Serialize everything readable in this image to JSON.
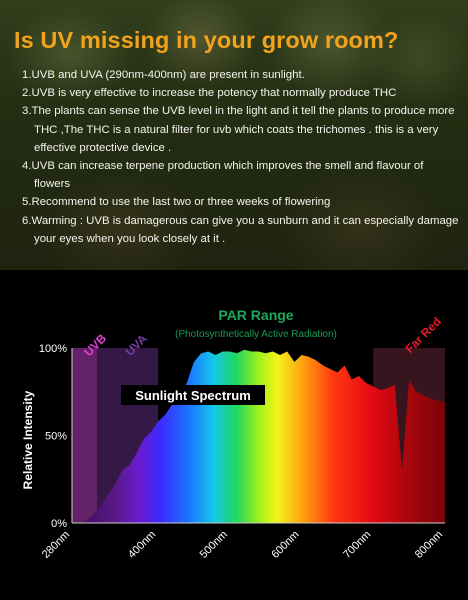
{
  "headline": "Is UV missing in your grow room?",
  "points": [
    "1.UVB and UVA (290nm-400nm) are present in sunlight.",
    "2.UVB is very effective to increase the potency that normally produce  THC",
    "3.The plants can sense the UVB level in the light and it tell the plants to produce more THC ,The THC is a natural filter for uvb which coats the trichomes . this is a very effective protective device .",
    "4.UVB can increase terpene production which improves the smell and flavour of flowers",
    "5.Recommend to use the last two or three weeks of flowering",
    "6.Warming : UVB is damagerous can give you a sunburn and it can especially damage your eyes when you look closely at it ."
  ],
  "colors": {
    "headline": "#f2a31c",
    "uvb": "#e040d8",
    "uva": "#7a3ca8",
    "par": "#1fa85a",
    "far_red": "#e8182a"
  },
  "chart_data": {
    "type": "area",
    "band_labels": {
      "uvb": "UVB",
      "uva": "UVA",
      "par": "PAR Range",
      "par_sub": "(Photosynthetically Active Radiation)",
      "far_red": "Far Red"
    },
    "bands": [
      {
        "name": "UVB",
        "from": 280,
        "to": 315
      },
      {
        "name": "UVA",
        "from": 315,
        "to": 400
      },
      {
        "name": "Far Red",
        "from": 700,
        "to": 800
      }
    ],
    "series_label": "Sunlight Spectrum",
    "ylabel": "Relative Intensity",
    "yticks": [
      "0%",
      "50%",
      "100%"
    ],
    "ylim": [
      0,
      100
    ],
    "xticks": [
      "280nm",
      "400nm",
      "500nm",
      "600nm",
      "700nm",
      "800nm"
    ],
    "xlim": [
      280,
      800
    ],
    "x": [
      280,
      290,
      300,
      310,
      320,
      330,
      340,
      350,
      360,
      370,
      380,
      390,
      400,
      410,
      420,
      430,
      440,
      450,
      460,
      470,
      480,
      490,
      500,
      510,
      520,
      530,
      540,
      550,
      560,
      570,
      580,
      590,
      600,
      610,
      620,
      630,
      640,
      650,
      660,
      670,
      680,
      690,
      700,
      710,
      720,
      730,
      740,
      750,
      760,
      770,
      780,
      790,
      800
    ],
    "values": [
      0,
      0,
      1,
      5,
      10,
      16,
      22,
      30,
      33,
      40,
      48,
      52,
      58,
      62,
      68,
      72,
      80,
      92,
      97,
      98,
      96,
      98,
      98,
      97,
      99,
      98,
      98,
      97,
      98,
      96,
      98,
      92,
      96,
      95,
      93,
      90,
      88,
      86,
      90,
      82,
      84,
      80,
      78,
      76,
      77,
      79,
      30,
      82,
      75,
      73,
      71,
      70,
      69
    ]
  }
}
